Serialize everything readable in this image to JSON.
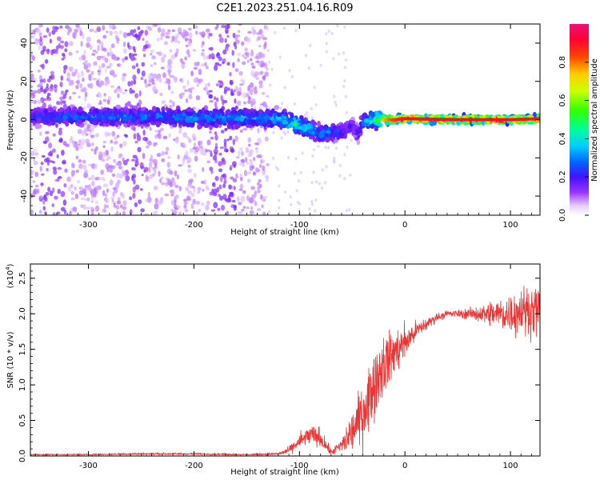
{
  "title": "C2E1.2023.251.04.16.R09",
  "chart_data": [
    {
      "type": "heatmap",
      "xlabel": "Height of straight line (km)",
      "ylabel": "Frequency (Hz)",
      "xlim": [
        -355,
        128
      ],
      "ylim": [
        -50,
        50
      ],
      "xticks": [
        -300,
        -200,
        -100,
        0,
        100
      ],
      "yticks": [
        -40,
        -20,
        0,
        20,
        40
      ],
      "colorbar": {
        "label": "Normalized spectral amplitude",
        "range": [
          0.0,
          1.0
        ],
        "ticks": [
          0.0,
          0.2,
          0.4,
          0.6,
          0.8
        ],
        "colormap": "rainbow (white-purple-blue-cyan-green-yellow-orange-red-pink)"
      },
      "ridge": {
        "x": [
          -355,
          -300,
          -250,
          -200,
          -150,
          -120,
          -100,
          -90,
          -80,
          -70,
          -60,
          -50,
          -45,
          -40,
          -30,
          -20,
          -10,
          0,
          50,
          100,
          128
        ],
        "center_hz": [
          1.5,
          1.5,
          1.5,
          1.0,
          1.0,
          0.5,
          -3,
          -5,
          -7,
          -7,
          -6,
          -3,
          -8,
          -1,
          0,
          0,
          0,
          0.5,
          0,
          0,
          0.5
        ],
        "peak_amplitude": [
          0.25,
          0.3,
          0.3,
          0.35,
          0.35,
          0.4,
          0.45,
          0.4,
          0.35,
          0.3,
          0.25,
          0.2,
          0.2,
          0.3,
          0.5,
          0.75,
          0.85,
          0.9,
          0.9,
          0.9,
          0.9
        ]
      }
    },
    {
      "type": "line",
      "xlabel": "Height of straight line (km)",
      "ylabel": "SNR (10 * v/v)",
      "y_scale_note": "(x10",
      "y_scale_exp": "4",
      "y_scale_close": ")",
      "xlim": [
        -355,
        128
      ],
      "ylim": [
        0.0,
        2.7
      ],
      "xticks": [
        -300,
        -200,
        -100,
        0,
        100
      ],
      "yticks": [
        0.0,
        0.5,
        1.0,
        1.5,
        2.0,
        2.5
      ],
      "ytick_labels": [
        "0.0",
        "0.5",
        "1.0",
        "1.5",
        "2.0",
        "2.5"
      ],
      "color": "#ee3333",
      "series": [
        {
          "x": [
            -355,
            -300,
            -250,
            -200,
            -150,
            -120,
            -110,
            -100,
            -90,
            -80,
            -70,
            -60,
            -50,
            -40,
            -30,
            -20,
            -10,
            0,
            10,
            20,
            30,
            40,
            50,
            60,
            70,
            80,
            90,
            100,
            110,
            128
          ],
          "values": [
            0.02,
            0.02,
            0.03,
            0.03,
            0.02,
            0.03,
            0.08,
            0.2,
            0.3,
            0.25,
            0.05,
            0.15,
            0.35,
            0.6,
            1.0,
            1.3,
            1.45,
            1.6,
            1.75,
            1.85,
            1.95,
            2.0,
            2.0,
            2.0,
            2.0,
            2.0,
            2.0,
            2.0,
            2.05,
            2.05
          ],
          "spread": [
            0.01,
            0.01,
            0.015,
            0.015,
            0.01,
            0.02,
            0.05,
            0.12,
            0.15,
            0.15,
            0.04,
            0.12,
            0.3,
            0.45,
            0.5,
            0.45,
            0.35,
            0.25,
            0.15,
            0.1,
            0.06,
            0.05,
            0.06,
            0.08,
            0.12,
            0.18,
            0.25,
            0.3,
            0.35,
            0.35
          ]
        }
      ]
    }
  ]
}
